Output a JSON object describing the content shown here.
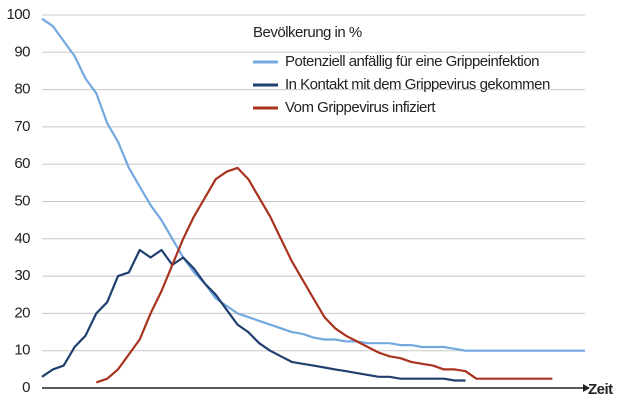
{
  "chart_data": {
    "type": "line",
    "legend_title": "Bevölkerung in %",
    "x_label": "Zeit",
    "x": [
      0,
      2,
      4,
      6,
      8,
      10,
      12,
      14,
      16,
      18,
      20,
      22,
      24,
      26,
      28,
      30,
      32,
      34,
      36,
      38,
      40,
      42,
      44,
      46,
      48,
      50,
      52,
      54,
      56,
      58,
      60,
      62,
      64,
      66,
      68,
      70,
      72,
      74,
      76,
      78,
      80,
      82,
      84,
      86,
      88,
      90,
      92,
      94,
      96,
      98,
      100
    ],
    "xlim": [
      0,
      100
    ],
    "ylim": [
      0,
      100
    ],
    "yticks": [
      0,
      10,
      20,
      30,
      40,
      50,
      60,
      70,
      80,
      90,
      100
    ],
    "grid": true,
    "legend": "top-right",
    "series": [
      {
        "name": "Potenziell anfällig für eine Grippeinfektion",
        "color": "#74a9e0",
        "values": [
          99,
          97,
          93,
          89,
          83,
          79,
          71,
          66,
          59,
          54,
          49,
          45,
          40,
          35,
          31,
          28,
          24,
          22,
          20,
          19,
          18,
          17,
          16,
          15,
          14.5,
          13.5,
          13,
          13,
          12.5,
          12.5,
          12,
          12,
          12,
          11.5,
          11.5,
          11,
          11,
          11,
          10.5,
          10,
          10,
          10,
          10,
          10,
          10,
          10,
          10,
          10,
          10,
          10,
          10
        ]
      },
      {
        "name": "In Kontakt mit dem Grippevirus gekommen",
        "color": "#1f3f6e",
        "values": [
          3,
          5,
          6,
          11,
          14,
          20,
          23,
          30,
          31,
          37,
          35,
          37,
          33,
          35,
          32,
          28,
          25,
          21,
          17,
          15,
          12,
          10,
          8.5,
          7,
          6.5,
          6,
          5.5,
          5,
          4.5,
          4,
          3.5,
          3,
          3,
          2.5,
          2.5,
          2.5,
          2.5,
          2.5,
          2,
          2,
          null,
          null,
          null,
          null,
          null,
          null,
          null,
          null,
          null,
          null,
          null
        ]
      },
      {
        "name": "Vom Grippevirus infiziert",
        "color": "#a8321e",
        "values": [
          null,
          null,
          null,
          null,
          null,
          1.5,
          2.5,
          5,
          9,
          13,
          20,
          26,
          33,
          40,
          46,
          51,
          56,
          58,
          59,
          56,
          51,
          46,
          40,
          34,
          29,
          24,
          19,
          16,
          14,
          12.5,
          11,
          9.5,
          8.5,
          8,
          7,
          6.5,
          6,
          5,
          5,
          4.5,
          2.5,
          2.5,
          2.5,
          2.5,
          2.5,
          2.5,
          2.5,
          2.5,
          null,
          null,
          null
        ]
      }
    ]
  }
}
